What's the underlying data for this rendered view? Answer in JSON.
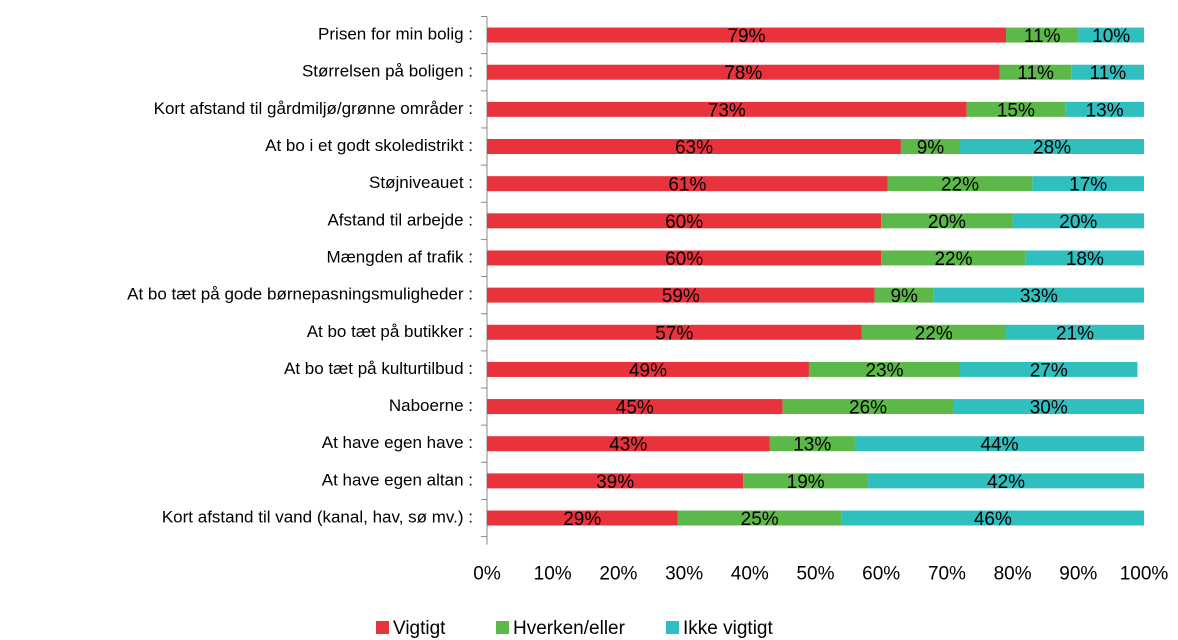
{
  "chart_data": {
    "type": "stacked-bar-horizontal",
    "categories": [
      "Prisen for min bolig :",
      "Størrelsen på boligen :",
      "Kort afstand til gårdmiljø/grønne områder :",
      "At bo i et godt skoledistrikt :",
      "Støjniveauet :",
      "Afstand til arbejde :",
      "Mængden af trafik :",
      "At bo tæt på gode børnepasningsmuligheder :",
      "At bo tæt på butikker :",
      "At bo tæt på kulturtilbud :",
      "Naboerne :",
      "At have egen have :",
      "At have egen altan :",
      "Kort afstand til vand (kanal, hav, sø mv.) :"
    ],
    "series": [
      {
        "name": "Vigtigt",
        "color": "#e8333c",
        "values": [
          79,
          78,
          73,
          63,
          61,
          60,
          60,
          59,
          57,
          49,
          45,
          43,
          39,
          29
        ],
        "value_labels": [
          "79%",
          "78%",
          "73%",
          "63%",
          "61%",
          "60%",
          "60%",
          "59%",
          "57%",
          "49%",
          "45%",
          "43%",
          "39%",
          "29%"
        ]
      },
      {
        "name": "Hverken/eller",
        "color": "#5cb848",
        "values": [
          11,
          11,
          15,
          9,
          22,
          20,
          22,
          9,
          22,
          23,
          26,
          13,
          19,
          25
        ],
        "value_labels": [
          "11%",
          "11%",
          "15%",
          "9%",
          "22%",
          "20%",
          "22%",
          "9%",
          "22%",
          "23%",
          "26%",
          "13%",
          "19%",
          "25%"
        ]
      },
      {
        "name": "Ikke vigtigt",
        "color": "#2fbfbf",
        "values": [
          10,
          11,
          13,
          28,
          17,
          20,
          18,
          33,
          21,
          27,
          30,
          44,
          42,
          46
        ],
        "value_labels": [
          "10%",
          "11%",
          "13%",
          "28%",
          "17%",
          "20%",
          "18%",
          "33%",
          "21%",
          "27%",
          "30%",
          "44%",
          "42%",
          "46%"
        ]
      }
    ],
    "xlim": [
      0,
      100
    ],
    "xticks": [
      {
        "value": 0,
        "label": "0%"
      },
      {
        "value": 10,
        "label": "10%"
      },
      {
        "value": 20,
        "label": "20%"
      },
      {
        "value": 30,
        "label": "30%"
      },
      {
        "value": 40,
        "label": "40%"
      },
      {
        "value": 50,
        "label": "50%"
      },
      {
        "value": 60,
        "label": "60%"
      },
      {
        "value": 70,
        "label": "70%"
      },
      {
        "value": 80,
        "label": "80%"
      },
      {
        "value": 90,
        "label": "90%"
      },
      {
        "value": 100,
        "label": "100%"
      }
    ],
    "legend": "bottom"
  }
}
